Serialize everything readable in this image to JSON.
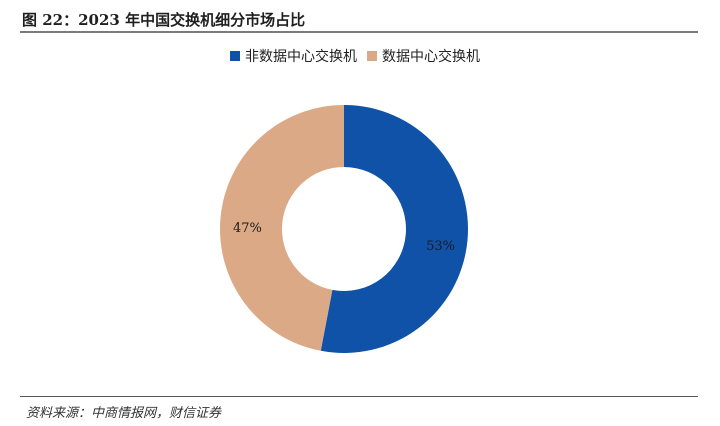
{
  "title": "图 22：2023 年中国交换机细分市场占比",
  "source": "资料来源：中商情报网，财信证券",
  "colors": {
    "non_dc": "#0F52A8",
    "dc": "#DBA985"
  },
  "chart_data": {
    "type": "pie",
    "style": "donut",
    "title": "",
    "legend_position": "top",
    "series": [
      {
        "name": "非数据中心交换机",
        "value": 53,
        "label": "53%"
      },
      {
        "name": "数据中心交换机",
        "value": 47,
        "label": "47%"
      }
    ]
  }
}
